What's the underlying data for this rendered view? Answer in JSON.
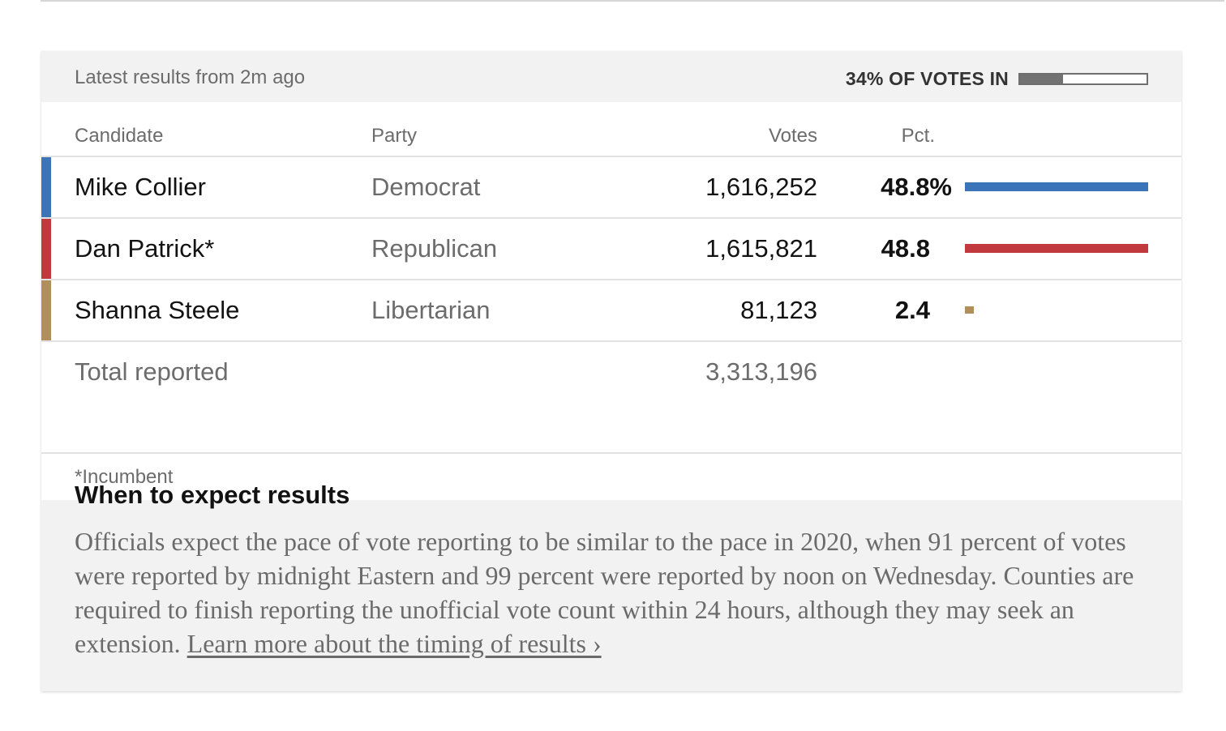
{
  "header": {
    "updated_text": "Latest results from 2m ago",
    "votes_in_label": "34% OF VOTES IN",
    "votes_in_fraction": 0.34
  },
  "columns": {
    "candidate": "Candidate",
    "party": "Party",
    "votes": "Votes",
    "pct": "Pct."
  },
  "rows": [
    {
      "name": "Mike Collier",
      "party": "Democrat",
      "votes": "1,616,252",
      "pct": "48.8%",
      "pct_value": 48.8,
      "color": "#3c74b9"
    },
    {
      "name": "Dan Patrick*",
      "party": "Republican",
      "votes": "1,615,821",
      "pct": "48.8",
      "pct_value": 48.8,
      "color": "#c1393d"
    },
    {
      "name": "Shanna Steele",
      "party": "Libertarian",
      "votes": "81,123",
      "pct": "2.4",
      "pct_value": 2.4,
      "color": "#b08f5a"
    }
  ],
  "total": {
    "label": "Total reported",
    "votes": "3,313,196"
  },
  "footnote": "*Incumbent",
  "expect": {
    "title": "When to expect results",
    "body": "Officials expect the pace of vote reporting to be similar to the pace in 2020, when 91 percent of votes were reported by midnight Eastern and 99 percent were reported by noon on Wednesday. Counties are required to finish reporting the unofficial vote count within 24 hours, although they may seek an extension.",
    "link_text": "Learn more about the timing of results ›"
  }
}
